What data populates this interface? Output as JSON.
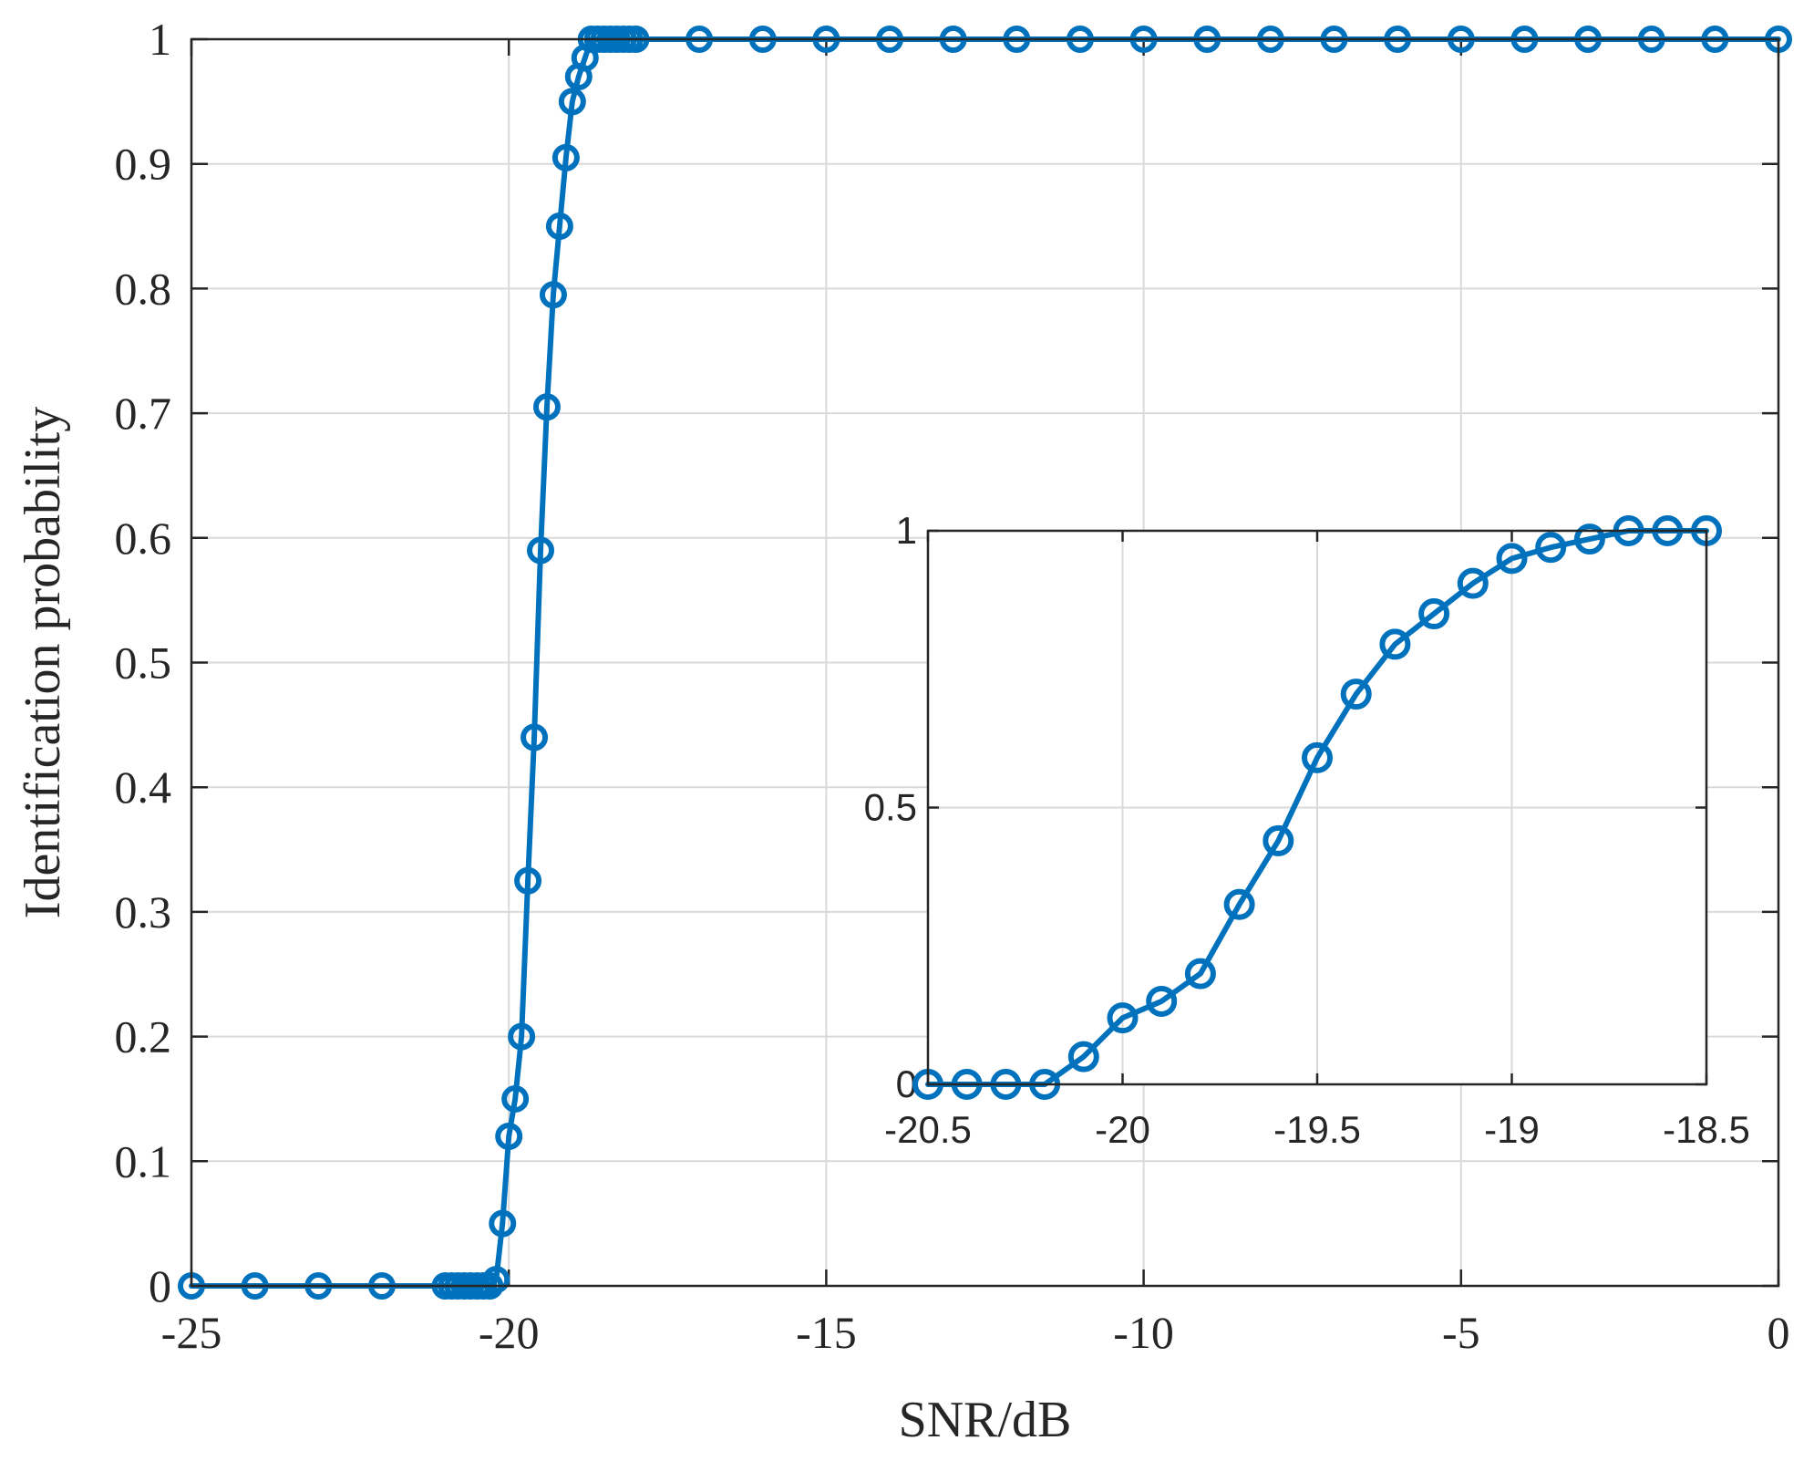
{
  "chart_data": [
    {
      "type": "line",
      "title": "",
      "xlabel": "SNR/dB",
      "ylabel": "Identification probability",
      "xlim": [
        -25,
        0
      ],
      "ylim": [
        0,
        1
      ],
      "xticks": [
        -25,
        -20,
        -15,
        -10,
        -5,
        0
      ],
      "xtick_labels": [
        "-25",
        "-20",
        "-15",
        "-10",
        "-5",
        "0"
      ],
      "yticks": [
        0,
        0.1,
        0.2,
        0.3,
        0.4,
        0.5,
        0.6,
        0.7,
        0.8,
        0.9,
        1
      ],
      "ytick_labels": [
        "0",
        "0.1",
        "0.2",
        "0.3",
        "0.4",
        "0.5",
        "0.6",
        "0.7",
        "0.8",
        "0.9",
        "1"
      ],
      "grid": true,
      "series": [
        {
          "color": "#0072BD",
          "marker": "circle",
          "x": [
            -25,
            -24,
            -23,
            -22,
            -21,
            -20.9,
            -20.8,
            -20.7,
            -20.6,
            -20.5,
            -20.4,
            -20.3,
            -20.2,
            -20.1,
            -20,
            -19.9,
            -19.8,
            -19.7,
            -19.6,
            -19.5,
            -19.4,
            -19.3,
            -19.2,
            -19.1,
            -19,
            -18.9,
            -18.8,
            -18.7,
            -18.6,
            -18.5,
            -18.4,
            -18.3,
            -18.2,
            -18.1,
            -18,
            -17,
            -16,
            -15,
            -14,
            -13,
            -12,
            -11,
            -10,
            -9,
            -8,
            -7,
            -6,
            -5,
            -4,
            -3,
            -2,
            -1,
            0
          ],
          "y": [
            0,
            0,
            0,
            0,
            0,
            0,
            0,
            0,
            0,
            0,
            0,
            0,
            0.005,
            0.05,
            0.12,
            0.15,
            0.2,
            0.325,
            0.44,
            0.59,
            0.705,
            0.795,
            0.85,
            0.905,
            0.95,
            0.97,
            0.985,
            1,
            1,
            1,
            1,
            1,
            1,
            1,
            1,
            1,
            1,
            1,
            1,
            1,
            1,
            1,
            1,
            1,
            1,
            1,
            1,
            1,
            1,
            1,
            1,
            1,
            1
          ]
        }
      ]
    },
    {
      "type": "line",
      "title": "",
      "xlabel": "",
      "ylabel": "",
      "xlim": [
        -20.5,
        -18.5
      ],
      "ylim": [
        0,
        1
      ],
      "xticks": [
        -20.5,
        -20,
        -19.5,
        -19,
        -18.5
      ],
      "xtick_labels": [
        "-20.5",
        "-20",
        "-19.5",
        "-19",
        "-18.5"
      ],
      "yticks": [
        0,
        0.5,
        1
      ],
      "ytick_labels": [
        "0",
        "0.5",
        "1"
      ],
      "grid": true,
      "series": [
        {
          "color": "#0072BD",
          "marker": "circle",
          "x": [
            -20.5,
            -20.4,
            -20.3,
            -20.2,
            -20.1,
            -20,
            -19.9,
            -19.8,
            -19.7,
            -19.6,
            -19.5,
            -19.4,
            -19.3,
            -19.2,
            -19.1,
            -19,
            -18.9,
            -18.8,
            -18.7,
            -18.6,
            -18.5
          ],
          "y": [
            0,
            0,
            0,
            0,
            0.05,
            0.12,
            0.15,
            0.2,
            0.325,
            0.44,
            0.59,
            0.705,
            0.795,
            0.85,
            0.905,
            0.95,
            0.97,
            0.985,
            1,
            1,
            1
          ]
        }
      ]
    }
  ]
}
